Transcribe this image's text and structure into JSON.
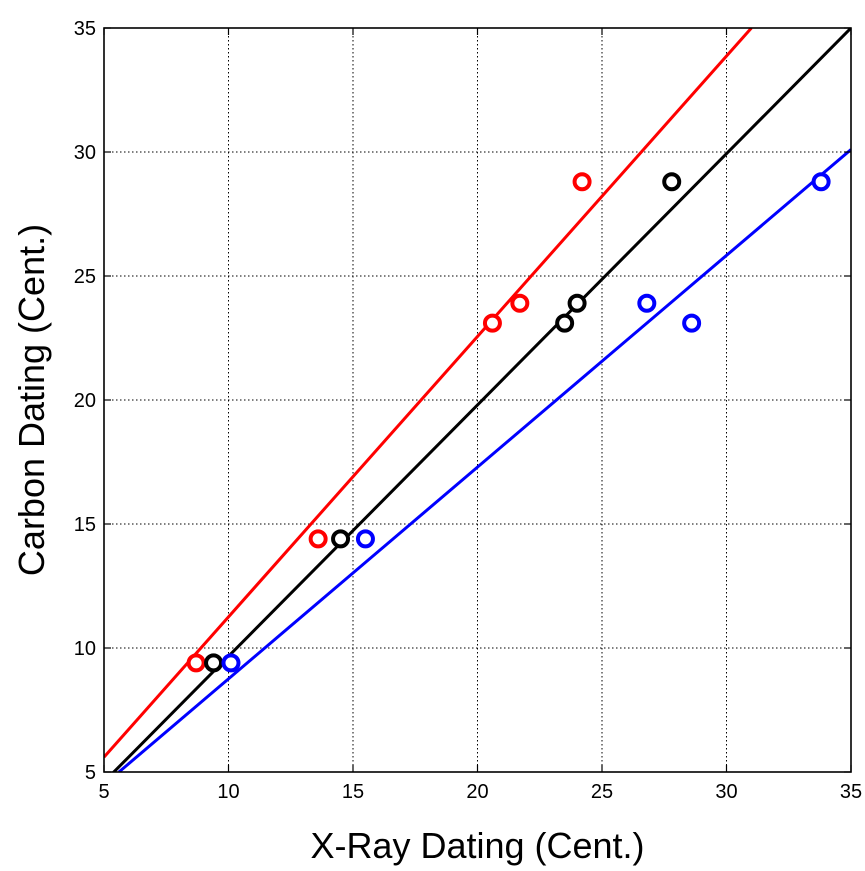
{
  "chart_data": {
    "type": "scatter",
    "title": "",
    "xlabel": "X-Ray Dating (Cent.)",
    "ylabel": "Carbon Dating (Cent.)",
    "xlim": [
      5,
      35
    ],
    "ylim": [
      5,
      35
    ],
    "xticks": [
      5,
      10,
      15,
      20,
      25,
      30,
      35
    ],
    "yticks": [
      5,
      10,
      15,
      20,
      25,
      30,
      35
    ],
    "grid": true,
    "series": [
      {
        "color": "#ff0000",
        "points": [
          [
            8.7,
            9.4
          ],
          [
            13.6,
            14.4
          ],
          [
            20.6,
            23.1
          ],
          [
            21.7,
            23.9
          ],
          [
            24.2,
            28.8
          ]
        ],
        "fit_line": {
          "x": [
            5,
            31
          ],
          "y": [
            5.6,
            35
          ]
        }
      },
      {
        "color": "#000000",
        "points": [
          [
            9.4,
            9.4
          ],
          [
            14.5,
            14.4
          ],
          [
            23.5,
            23.1
          ],
          [
            24.0,
            23.9
          ],
          [
            27.8,
            28.8
          ]
        ],
        "fit_line": {
          "x": [
            5,
            35
          ],
          "y": [
            4.6,
            35
          ]
        }
      },
      {
        "color": "#0000ff",
        "points": [
          [
            10.1,
            9.4
          ],
          [
            15.5,
            14.4
          ],
          [
            26.8,
            23.9
          ],
          [
            28.6,
            23.1
          ],
          [
            33.8,
            28.8
          ]
        ],
        "fit_line": {
          "x": [
            5.6,
            35
          ],
          "y": [
            5,
            30.1
          ]
        }
      }
    ]
  }
}
